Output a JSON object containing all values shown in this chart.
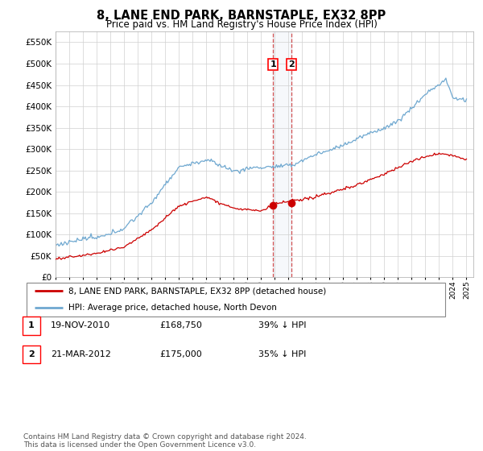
{
  "title": "8, LANE END PARK, BARNSTAPLE, EX32 8PP",
  "subtitle": "Price paid vs. HM Land Registry's House Price Index (HPI)",
  "legend_line1": "8, LANE END PARK, BARNSTAPLE, EX32 8PP (detached house)",
  "legend_line2": "HPI: Average price, detached house, North Devon",
  "transaction1_date": "19-NOV-2010",
  "transaction1_price": "£168,750",
  "transaction1_hpi": "39% ↓ HPI",
  "transaction2_date": "21-MAR-2012",
  "transaction2_price": "£175,000",
  "transaction2_hpi": "35% ↓ HPI",
  "footer": "Contains HM Land Registry data © Crown copyright and database right 2024.\nThis data is licensed under the Open Government Licence v3.0.",
  "hpi_color": "#6fa8d0",
  "price_color": "#cc0000",
  "transaction1_x": 2010.88,
  "transaction2_x": 2012.22,
  "ylim_min": 0,
  "ylim_max": 575000,
  "xlim_min": 1995,
  "xlim_max": 2025.5
}
